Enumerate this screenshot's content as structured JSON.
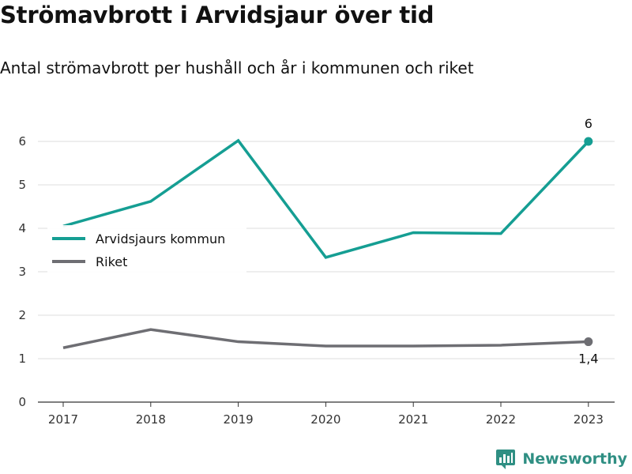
{
  "header": {
    "title": "Strömavbrott i Arvidsjaur över tid",
    "subtitle": "Antal strömavbrott per hushåll och år i kommunen och riket"
  },
  "brand": {
    "name": "Newsworthy",
    "color": "#2f8f83"
  },
  "chart_data": {
    "type": "line",
    "x": [
      "2017",
      "2018",
      "2019",
      "2020",
      "2021",
      "2022",
      "2023"
    ],
    "ylim": [
      0,
      6.5
    ],
    "yticks": [
      0,
      1,
      2,
      3,
      4,
      5,
      6
    ],
    "grid": true,
    "legend_position": "left",
    "series": [
      {
        "name": "Arvidsjaurs kommun",
        "color": "#159e93",
        "values": [
          4.05,
          4.62,
          6.02,
          3.33,
          3.9,
          3.88,
          6.0
        ],
        "end_label": "6"
      },
      {
        "name": "Riket",
        "color": "#6e6e73",
        "values": [
          1.25,
          1.67,
          1.39,
          1.29,
          1.29,
          1.31,
          1.39
        ],
        "end_label": "1,4"
      }
    ]
  }
}
